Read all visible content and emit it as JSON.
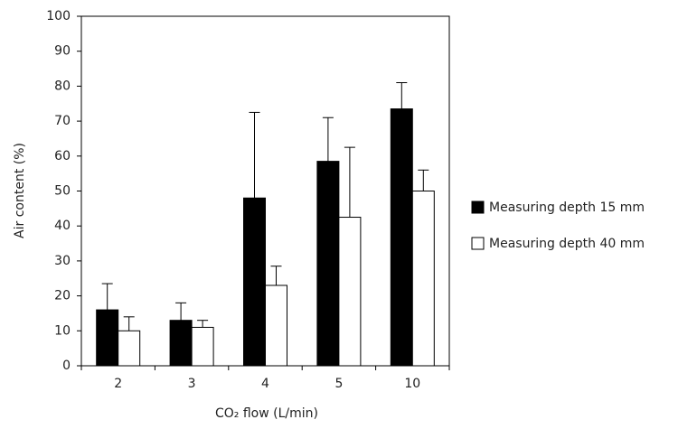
{
  "chart_data": {
    "type": "bar",
    "x_label": "CO₂ flow (L/min)",
    "y_label": "Air content (%)",
    "categories": [
      "2",
      "3",
      "4",
      "5",
      "10"
    ],
    "series": [
      {
        "name": "Measuring depth 15 mm",
        "color": "#000000",
        "values": [
          16,
          13,
          48,
          58.5,
          73.5
        ],
        "errors": [
          7.5,
          5,
          24.5,
          12.5,
          7.5
        ]
      },
      {
        "name": "Measuring depth 40 mm",
        "color": "#ffffff",
        "values": [
          10,
          11,
          23,
          42.5,
          50
        ],
        "errors": [
          4,
          2,
          5.5,
          20,
          6
        ]
      }
    ],
    "ylim": [
      0,
      100
    ],
    "yticks": [
      0,
      10,
      20,
      30,
      40,
      50,
      60,
      70,
      80,
      90,
      100
    ],
    "legend": "right"
  }
}
